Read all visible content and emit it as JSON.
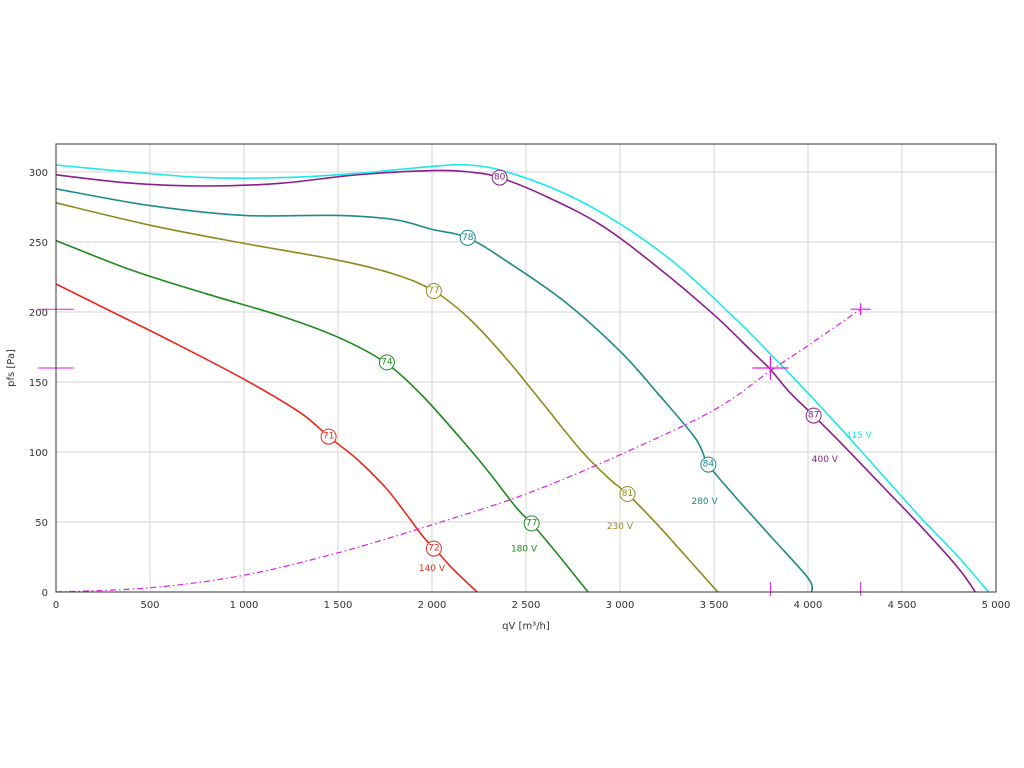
{
  "chart_data": {
    "type": "line",
    "title": "",
    "xlabel": "qV [m³/h]",
    "ylabel": "pfs [Pa]",
    "xlim": [
      0,
      5000
    ],
    "ylim": [
      0,
      320
    ],
    "xticks": [
      0,
      500,
      1000,
      1500,
      2000,
      2500,
      3000,
      3500,
      4000,
      4500,
      5000
    ],
    "xtick_labels": [
      "0",
      "500",
      "1 000",
      "1 500",
      "2 000",
      "2 500",
      "3 000",
      "3 500",
      "4 000",
      "4 500",
      "5 000"
    ],
    "yticks": [
      0,
      50,
      100,
      150,
      200,
      250,
      300
    ],
    "ytick_labels": [
      "0",
      "50",
      "100",
      "150",
      "200",
      "250",
      "300"
    ],
    "grid": true,
    "series": [
      {
        "name": "140 V",
        "color": "#e8281e",
        "points": [
          [
            0,
            220
          ],
          [
            300,
            200
          ],
          [
            600,
            180
          ],
          [
            1000,
            152
          ],
          [
            1300,
            128
          ],
          [
            1450,
            111
          ],
          [
            1600,
            95
          ],
          [
            1750,
            75
          ],
          [
            1850,
            58
          ],
          [
            1950,
            40
          ],
          [
            2020,
            30
          ],
          [
            2100,
            18
          ],
          [
            2200,
            5
          ],
          [
            2240,
            0
          ]
        ],
        "markers": [
          {
            "x": 1450,
            "y": 111,
            "label": "71"
          },
          {
            "x": 2010,
            "y": 31,
            "label": "72"
          }
        ],
        "label_pos": {
          "x": 1930,
          "y": 15
        }
      },
      {
        "name": "180 V",
        "color": "#1e8a1e",
        "points": [
          [
            0,
            251
          ],
          [
            400,
            230
          ],
          [
            800,
            213
          ],
          [
            1200,
            197
          ],
          [
            1500,
            182
          ],
          [
            1750,
            164
          ],
          [
            1950,
            140
          ],
          [
            2150,
            110
          ],
          [
            2300,
            86
          ],
          [
            2450,
            60
          ],
          [
            2530,
            49
          ],
          [
            2650,
            30
          ],
          [
            2800,
            5
          ],
          [
            2830,
            0
          ]
        ],
        "markers": [
          {
            "x": 1760,
            "y": 164,
            "label": "74"
          },
          {
            "x": 2530,
            "y": 49,
            "label": "77"
          }
        ],
        "label_pos": {
          "x": 2420,
          "y": 29
        }
      },
      {
        "name": "230 V",
        "color": "#8c8c1e",
        "points": [
          [
            0,
            278
          ],
          [
            500,
            262
          ],
          [
            1000,
            249
          ],
          [
            1500,
            237
          ],
          [
            1800,
            227
          ],
          [
            2010,
            215
          ],
          [
            2200,
            195
          ],
          [
            2400,
            166
          ],
          [
            2600,
            133
          ],
          [
            2800,
            100
          ],
          [
            2950,
            80
          ],
          [
            3040,
            70
          ],
          [
            3200,
            48
          ],
          [
            3400,
            18
          ],
          [
            3520,
            0
          ]
        ],
        "markers": [
          {
            "x": 2010,
            "y": 215,
            "label": "77"
          },
          {
            "x": 3040,
            "y": 70,
            "label": "81"
          }
        ],
        "label_pos": {
          "x": 2930,
          "y": 45
        }
      },
      {
        "name": "280 V",
        "color": "#1e8a8a",
        "points": [
          [
            0,
            288
          ],
          [
            500,
            276
          ],
          [
            1000,
            269
          ],
          [
            1500,
            269
          ],
          [
            1800,
            266
          ],
          [
            2000,
            259
          ],
          [
            2190,
            253
          ],
          [
            2400,
            236
          ],
          [
            2700,
            208
          ],
          [
            3000,
            172
          ],
          [
            3200,
            142
          ],
          [
            3400,
            110
          ],
          [
            3470,
            91
          ],
          [
            3600,
            70
          ],
          [
            3800,
            40
          ],
          [
            4000,
            10
          ],
          [
            4020,
            0
          ]
        ],
        "markers": [
          {
            "x": 2190,
            "y": 253,
            "label": "78"
          },
          {
            "x": 3470,
            "y": 91,
            "label": "84"
          }
        ],
        "label_pos": {
          "x": 3380,
          "y": 63
        }
      },
      {
        "name": "400 V",
        "color": "#8c1e8c",
        "points": [
          [
            0,
            298
          ],
          [
            400,
            292
          ],
          [
            800,
            290
          ],
          [
            1200,
            292
          ],
          [
            1600,
            298
          ],
          [
            2000,
            301
          ],
          [
            2200,
            300
          ],
          [
            2360,
            296
          ],
          [
            2600,
            283
          ],
          [
            2900,
            262
          ],
          [
            3200,
            232
          ],
          [
            3500,
            198
          ],
          [
            3700,
            172
          ],
          [
            3800,
            159
          ],
          [
            3900,
            143
          ],
          [
            4030,
            126
          ],
          [
            4200,
            103
          ],
          [
            4400,
            75
          ],
          [
            4600,
            47
          ],
          [
            4800,
            17
          ],
          [
            4890,
            0
          ]
        ],
        "markers": [
          {
            "x": 2360,
            "y": 296,
            "label": "80"
          },
          {
            "x": 4030,
            "y": 126,
            "label": "87"
          }
        ],
        "label_pos": {
          "x": 4020,
          "y": 93
        }
      },
      {
        "name": "415 V",
        "color": "#1ee8e8",
        "points": [
          [
            0,
            305
          ],
          [
            400,
            300
          ],
          [
            800,
            296
          ],
          [
            1200,
            296
          ],
          [
            1600,
            299
          ],
          [
            2000,
            304
          ],
          [
            2200,
            305
          ],
          [
            2400,
            300
          ],
          [
            2700,
            285
          ],
          [
            3000,
            263
          ],
          [
            3300,
            234
          ],
          [
            3600,
            197
          ],
          [
            3800,
            170
          ],
          [
            4000,
            142
          ],
          [
            4200,
            113
          ],
          [
            4400,
            83
          ],
          [
            4600,
            53
          ],
          [
            4800,
            25
          ],
          [
            4960,
            0
          ]
        ],
        "markers": [],
        "label_pos": {
          "x": 4200,
          "y": 110
        }
      },
      {
        "name": "",
        "color": "#e01ee0",
        "dashed": true,
        "points": [
          [
            0,
            0
          ],
          [
            500,
            3
          ],
          [
            1000,
            12
          ],
          [
            1500,
            28
          ],
          [
            2000,
            48
          ],
          [
            2500,
            70
          ],
          [
            3000,
            98
          ],
          [
            3500,
            130
          ],
          [
            3800,
            158
          ],
          [
            4000,
            176
          ],
          [
            4280,
            202
          ]
        ],
        "markers": [],
        "label_pos": null
      }
    ],
    "reference_marks": [
      {
        "x": 3800,
        "y": 160,
        "kind": "operating-point"
      },
      {
        "x": 4280,
        "y": 202,
        "kind": "cross"
      }
    ],
    "axis_marks": {
      "y": [
        160,
        202
      ],
      "x": [
        3800,
        4280
      ]
    }
  }
}
